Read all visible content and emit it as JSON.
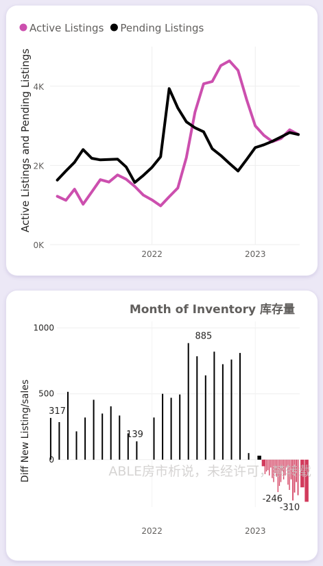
{
  "charts": [
    {
      "legend": [
        {
          "name": "Active Listings",
          "color": "#cc4fae"
        },
        {
          "name": "Pending Listings",
          "color": "#000000"
        }
      ]
    },
    {
      "title": "Month of Inventory 库存量",
      "watermark": "ABLE房市析说，未经许可，禁转载"
    }
  ],
  "chart_data": [
    {
      "type": "line",
      "title": "",
      "ylabel": "Active Listings and Pending Listings",
      "xlabel": "",
      "x_ticks": [
        "2022",
        "2023"
      ],
      "y_ticks": [
        "0K",
        "2K",
        "4K"
      ],
      "ylim": [
        0,
        5000
      ],
      "xlim": [
        "2021-01",
        "2023-06"
      ],
      "grid": true,
      "legend_position": "top-left",
      "series": [
        {
          "name": "Active Listings",
          "color": "#cc4fae",
          "points": [
            [
              "2021-02",
              1220
            ],
            [
              "2021-03",
              1120
            ],
            [
              "2021-04",
              1400
            ],
            [
              "2021-05",
              1020
            ],
            [
              "2021-06",
              1330
            ],
            [
              "2021-07",
              1640
            ],
            [
              "2021-08",
              1580
            ],
            [
              "2021-09",
              1760
            ],
            [
              "2021-10",
              1650
            ],
            [
              "2021-11",
              1470
            ],
            [
              "2021-12",
              1250
            ],
            [
              "2022-01",
              1130
            ],
            [
              "2022-02",
              980
            ],
            [
              "2022-03",
              1210
            ],
            [
              "2022-04",
              1430
            ],
            [
              "2022-05",
              2200
            ],
            [
              "2022-06",
              3350
            ],
            [
              "2022-07",
              4060
            ],
            [
              "2022-08",
              4120
            ],
            [
              "2022-09",
              4520
            ],
            [
              "2022-10",
              4640
            ],
            [
              "2022-11",
              4400
            ],
            [
              "2022-12",
              3660
            ],
            [
              "2023-01",
              3000
            ],
            [
              "2023-02",
              2760
            ],
            [
              "2023-03",
              2600
            ],
            [
              "2023-04",
              2680
            ],
            [
              "2023-05",
              2900
            ],
            [
              "2023-06",
              2780
            ]
          ]
        },
        {
          "name": "Pending Listings",
          "color": "#000000",
          "points": [
            [
              "2021-02",
              1630
            ],
            [
              "2021-03",
              1860
            ],
            [
              "2021-04",
              2080
            ],
            [
              "2021-05",
              2400
            ],
            [
              "2021-06",
              2180
            ],
            [
              "2021-07",
              2140
            ],
            [
              "2021-08",
              2150
            ],
            [
              "2021-09",
              2160
            ],
            [
              "2021-10",
              1960
            ],
            [
              "2021-11",
              1570
            ],
            [
              "2021-12",
              1750
            ],
            [
              "2022-01",
              1950
            ],
            [
              "2022-02",
              2220
            ],
            [
              "2022-03",
              3940
            ],
            [
              "2022-04",
              3450
            ],
            [
              "2022-05",
              3100
            ],
            [
              "2022-06",
              2950
            ],
            [
              "2022-07",
              2850
            ],
            [
              "2022-08",
              2420
            ],
            [
              "2022-09",
              2250
            ],
            [
              "2022-10",
              2050
            ],
            [
              "2022-11",
              1860
            ],
            [
              "2022-12",
              2150
            ],
            [
              "2023-01",
              2450
            ],
            [
              "2023-02",
              2520
            ],
            [
              "2023-03",
              2610
            ],
            [
              "2023-04",
              2720
            ],
            [
              "2023-05",
              2830
            ],
            [
              "2023-06",
              2780
            ]
          ]
        }
      ]
    },
    {
      "type": "bar",
      "title": "Month of Inventory 库存量",
      "ylabel": "Diff New Listing/sales",
      "xlabel": "",
      "x_ticks": [
        "2022",
        "2023"
      ],
      "y_ticks": [
        "0",
        "500",
        "1000"
      ],
      "ylim": [
        -360,
        1050
      ],
      "xlim": [
        "2021-01",
        "2023-06"
      ],
      "grid": true,
      "positive_color": "#000000",
      "negative_color": "#d23b5c",
      "data_labels": [
        {
          "x": "2021-02",
          "value": "317"
        },
        {
          "x": "2021-11",
          "value": "139"
        },
        {
          "x": "2022-07",
          "value": "885"
        },
        {
          "x": "2023-03",
          "value": "-246"
        },
        {
          "x": "2023-05",
          "value": "-310"
        }
      ],
      "bars": [
        [
          "2021-01",
          317
        ],
        [
          "2021-02",
          285
        ],
        [
          "2021-03",
          515
        ],
        [
          "2021-04",
          215
        ],
        [
          "2021-05",
          320
        ],
        [
          "2021-06",
          455
        ],
        [
          "2021-07",
          350
        ],
        [
          "2021-08",
          405
        ],
        [
          "2021-09",
          335
        ],
        [
          "2021-10",
          200
        ],
        [
          "2021-11",
          139
        ],
        [
          "2022-01",
          320
        ],
        [
          "2022-02",
          500
        ],
        [
          "2022-03",
          470
        ],
        [
          "2022-04",
          495
        ],
        [
          "2022-05",
          885
        ],
        [
          "2022-06",
          785
        ],
        [
          "2022-07",
          640
        ],
        [
          "2022-08",
          820
        ],
        [
          "2022-09",
          725
        ],
        [
          "2022-10",
          760
        ],
        [
          "2022-11",
          810
        ],
        [
          "2022-12",
          50
        ],
        [
          "2023-01",
          30
        ],
        [
          "2023-01",
          -50
        ],
        [
          "2023-02",
          -110
        ],
        [
          "2023-02",
          -90
        ],
        [
          "2023-02",
          -80
        ],
        [
          "2023-02",
          -120
        ],
        [
          "2023-02",
          -60
        ],
        [
          "2023-02",
          -140
        ],
        [
          "2023-03",
          -170
        ],
        [
          "2023-03",
          -100
        ],
        [
          "2023-03",
          -130
        ],
        [
          "2023-03",
          -246
        ],
        [
          "2023-03",
          -200
        ],
        [
          "2023-03",
          -170
        ],
        [
          "2023-04",
          -90
        ],
        [
          "2023-04",
          -150
        ],
        [
          "2023-04",
          -120
        ],
        [
          "2023-04",
          -60
        ],
        [
          "2023-04",
          -190
        ],
        [
          "2023-04",
          -230
        ],
        [
          "2023-05",
          -150
        ],
        [
          "2023-05",
          -310
        ],
        [
          "2023-05",
          -250
        ],
        [
          "2023-05",
          -170
        ],
        [
          "2023-05",
          -270
        ],
        [
          "2023-06",
          -210
        ],
        [
          "2023-06",
          -320
        ]
      ]
    }
  ]
}
